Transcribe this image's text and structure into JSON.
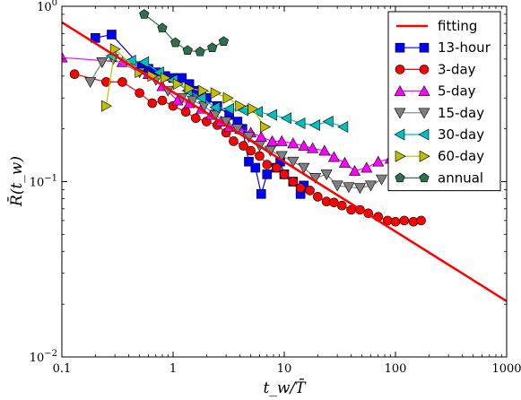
{
  "chart_data": {
    "type": "scatter",
    "title": "",
    "xlabel": "t_w/T̄",
    "ylabel": "R̄(t_w)",
    "xscale": "log",
    "yscale": "log",
    "xlim": [
      0.1,
      1000
    ],
    "ylim": [
      0.01,
      1
    ],
    "x_ticks": [
      {
        "value": 0.1,
        "label": "0.1"
      },
      {
        "value": 1,
        "label": "1"
      },
      {
        "value": 10,
        "label": "10"
      },
      {
        "value": 100,
        "label": "100"
      },
      {
        "value": 1000,
        "label": "1000"
      }
    ],
    "y_ticks": [
      {
        "value": 0.01,
        "label": "10",
        "exp": "−2"
      },
      {
        "value": 0.1,
        "label": "10",
        "exp": "−1"
      },
      {
        "value": 1,
        "label": "10",
        "exp": "0"
      }
    ],
    "legend_position": "top-right",
    "fit": {
      "name": "fitting",
      "color": "#ff0000",
      "x": [
        0.1,
        1000
      ],
      "y": [
        0.81,
        0.0208
      ]
    },
    "series": [
      {
        "name": "13-hour",
        "color": "#0000ff",
        "marker": "square",
        "line": true,
        "x": [
          0.2,
          0.28,
          0.52,
          0.6,
          0.7,
          0.85,
          1.0,
          1.2,
          1.4,
          1.6,
          2.0,
          2.5,
          3.2,
          3.8,
          4.2,
          4.8,
          5.5,
          6.2,
          7.0,
          8.5,
          9.2,
          10,
          12,
          14,
          15
        ],
        "y": [
          0.66,
          0.69,
          0.45,
          0.44,
          0.42,
          0.4,
          0.39,
          0.39,
          0.36,
          0.33,
          0.3,
          0.27,
          0.24,
          0.22,
          0.2,
          0.13,
          0.12,
          0.085,
          0.11,
          0.12,
          0.13,
          0.11,
          0.1,
          0.085,
          0.095
        ]
      },
      {
        "name": "3-day",
        "color": "#ff0000",
        "marker": "circle",
        "line": true,
        "x": [
          0.13,
          0.25,
          0.35,
          0.5,
          0.65,
          0.8,
          1.0,
          1.3,
          1.6,
          2.0,
          2.5,
          3.0,
          3.5,
          4.3,
          5.0,
          6.0,
          7.0,
          8.5,
          10,
          12,
          14,
          17,
          20,
          24,
          28,
          33,
          40,
          48,
          57,
          70,
          85,
          100,
          120,
          145,
          170
        ],
        "y": [
          0.41,
          0.37,
          0.37,
          0.32,
          0.28,
          0.29,
          0.27,
          0.25,
          0.23,
          0.22,
          0.21,
          0.19,
          0.17,
          0.16,
          0.15,
          0.14,
          0.125,
          0.12,
          0.11,
          0.1,
          0.092,
          0.089,
          0.082,
          0.077,
          0.076,
          0.073,
          0.069,
          0.069,
          0.066,
          0.063,
          0.06,
          0.059,
          0.06,
          0.059,
          0.06
        ]
      },
      {
        "name": "5-day",
        "color": "#ff00ff",
        "marker": "triangle-up",
        "line": true,
        "x": [
          0.1,
          0.35,
          0.6,
          0.8,
          1.1,
          1.4,
          1.8,
          2.2,
          2.7,
          3.2,
          4.0,
          5.0,
          6.2,
          7.8,
          9.5,
          12,
          15,
          18,
          23,
          28,
          35,
          43,
          55,
          70,
          90
        ],
        "y": [
          0.51,
          0.48,
          0.41,
          0.35,
          0.29,
          0.28,
          0.26,
          0.24,
          0.22,
          0.205,
          0.2,
          0.19,
          0.18,
          0.17,
          0.17,
          0.165,
          0.16,
          0.155,
          0.15,
          0.138,
          0.128,
          0.115,
          0.12,
          0.13,
          0.135
        ]
      },
      {
        "name": "15-day",
        "color": "#808080",
        "marker": "triangle-down",
        "line": true,
        "x": [
          0.18,
          0.23,
          0.29,
          0.5,
          0.7,
          0.9,
          1.2,
          1.5,
          1.9,
          2.4,
          3.0,
          3.8,
          4.8,
          6.0,
          7.5,
          9.5,
          12,
          15,
          19,
          24,
          30,
          38,
          48,
          60,
          75
        ],
        "y": [
          0.37,
          0.48,
          0.5,
          0.42,
          0.38,
          0.33,
          0.3,
          0.29,
          0.27,
          0.24,
          0.22,
          0.2,
          0.18,
          0.16,
          0.15,
          0.14,
          0.13,
          0.12,
          0.105,
          0.11,
          0.095,
          0.093,
          0.092,
          0.095,
          0.103
        ]
      },
      {
        "name": "30-day",
        "color": "#00bfbf",
        "marker": "triangle-left",
        "line": true,
        "x": [
          0.28,
          0.42,
          0.55,
          0.75,
          1.0,
          1.35,
          1.8,
          2.4,
          3.2,
          4.3,
          5.8,
          7.8,
          10.5,
          14,
          19,
          25,
          34
        ],
        "y": [
          0.52,
          0.49,
          0.48,
          0.42,
          0.38,
          0.33,
          0.3,
          0.265,
          0.26,
          0.255,
          0.25,
          0.24,
          0.23,
          0.215,
          0.21,
          0.22,
          0.205
        ]
      },
      {
        "name": "60-day",
        "color": "#bfbf00",
        "marker": "triangle-right",
        "line": true,
        "x": [
          0.25,
          0.3,
          0.5,
          0.65,
          0.85,
          1.1,
          1.4,
          1.85,
          2.4,
          3.1,
          4.0,
          5.2,
          6.7
        ],
        "y": [
          0.27,
          0.57,
          0.42,
          0.4,
          0.39,
          0.36,
          0.34,
          0.33,
          0.32,
          0.3,
          0.27,
          0.26,
          0.205
        ]
      },
      {
        "name": "annual",
        "color": "#2f6f4f",
        "marker": "pentagon",
        "line": true,
        "x": [
          0.55,
          0.8,
          1.05,
          1.35,
          1.75,
          2.25,
          2.85
        ],
        "y": [
          0.9,
          0.75,
          0.62,
          0.56,
          0.55,
          0.58,
          0.63
        ]
      }
    ]
  }
}
